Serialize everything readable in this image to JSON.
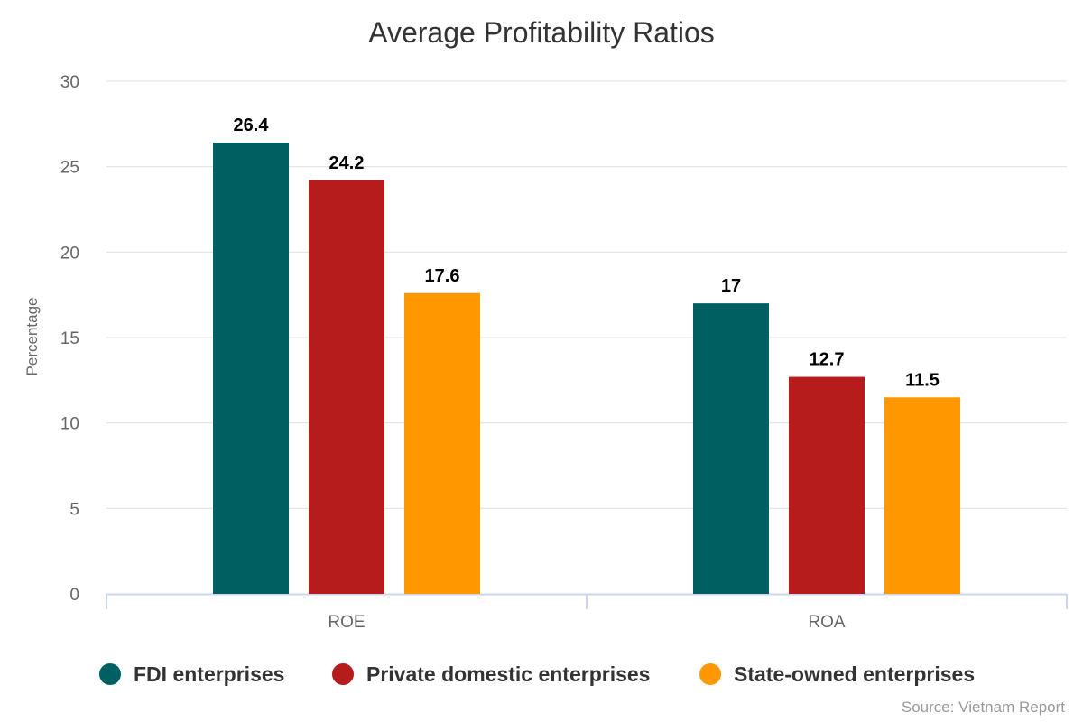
{
  "chart_data": {
    "type": "bar",
    "title": "Average Profitability Ratios",
    "xlabel": "",
    "ylabel": "Percentage",
    "ylim": [
      0,
      30
    ],
    "yticks": [
      "0",
      "5",
      "10",
      "15",
      "20",
      "25",
      "30"
    ],
    "grid": true,
    "categories": [
      "ROE",
      "ROA"
    ],
    "series": [
      {
        "name": "FDI enterprises",
        "color": "#005f60",
        "values": [
          26.4,
          17
        ],
        "labels": [
          "26.4",
          "17"
        ]
      },
      {
        "name": "Private domestic enterprises",
        "color": "#b71c1c",
        "values": [
          24.2,
          12.7
        ],
        "labels": [
          "24.2",
          "12.7"
        ]
      },
      {
        "name": "State-owned enterprises",
        "color": "#ff9800",
        "values": [
          17.6,
          11.5
        ],
        "labels": [
          "17.6",
          "11.5"
        ]
      }
    ],
    "legend_position": "bottom-left",
    "source": "Source: Vietnam Report"
  }
}
